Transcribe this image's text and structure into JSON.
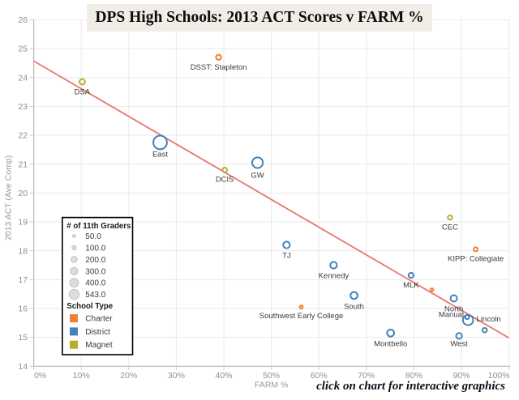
{
  "page": {
    "title": "DPS High Schools: 2013 ACT Scores v FARM %",
    "footer_note": "click on chart for interactive graphics"
  },
  "colors": {
    "charter": "#ee8133",
    "district": "#4482bb",
    "magnet": "#b6ae2c",
    "trendline": "#ea7570",
    "grid": "#e9e9e9",
    "axis_line": "#b6b6b6",
    "tick": "#c9c9c9",
    "tick_label": "#8f8f8f",
    "axis_title": "#999999",
    "point_label": "#3b3b3b",
    "title_bg": "#f1eee7",
    "legend_border": "#000000",
    "legend_bg": "#ffffff",
    "legend_circle_fill": "#dcdcdc",
    "legend_circle_stroke": "#c3c3c3"
  },
  "chart_data": {
    "type": "scatter",
    "title": "DPS High Schools: 2013 ACT Scores v FARM %",
    "xlabel": "FARM %",
    "ylabel": "2013 ACT (Ave Comp)",
    "xlim": [
      0,
      100
    ],
    "ylim": [
      14,
      26
    ],
    "grid": true,
    "x_ticks": [
      {
        "value": 0,
        "label": "0%"
      },
      {
        "value": 10,
        "label": "10%"
      },
      {
        "value": 20,
        "label": "20%"
      },
      {
        "value": 30,
        "label": "30%"
      },
      {
        "value": 40,
        "label": "40%"
      },
      {
        "value": 50,
        "label": "50%"
      },
      {
        "value": 60,
        "label": "60%"
      },
      {
        "value": 70,
        "label": "70%"
      },
      {
        "value": 80,
        "label": "80%"
      },
      {
        "value": 90,
        "label": "90%"
      },
      {
        "value": 100,
        "label": "100%"
      }
    ],
    "y_ticks": [
      {
        "value": 14,
        "label": "14"
      },
      {
        "value": 15,
        "label": "15"
      },
      {
        "value": 16,
        "label": "16"
      },
      {
        "value": 17,
        "label": "17"
      },
      {
        "value": 18,
        "label": "18"
      },
      {
        "value": 19,
        "label": "19"
      },
      {
        "value": 20,
        "label": "20"
      },
      {
        "value": 21,
        "label": "21"
      },
      {
        "value": 22,
        "label": "22"
      },
      {
        "value": 23,
        "label": "23"
      },
      {
        "value": 24,
        "label": "24"
      },
      {
        "value": 25,
        "label": "25"
      },
      {
        "value": 26,
        "label": "26"
      }
    ],
    "size_field": "# of 11th Graders",
    "trendline": {
      "x": [
        0,
        100
      ],
      "y": [
        24.57,
        14.98
      ]
    },
    "points": [
      {
        "school": "DSA",
        "type": "Magnet",
        "farm_pct": 10.2,
        "act": 23.85,
        "students": 90,
        "label_pos": "below"
      },
      {
        "school": "DSST: Stapleton",
        "type": "Charter",
        "farm_pct": 38.9,
        "act": 24.7,
        "students": 78,
        "label_pos": "below"
      },
      {
        "school": "East",
        "type": "District",
        "farm_pct": 26.6,
        "act": 21.75,
        "students": 543,
        "label_pos": "below",
        "dy": -3
      },
      {
        "school": "DCIS",
        "type": "Magnet",
        "farm_pct": 40.2,
        "act": 20.8,
        "students": 60,
        "label_pos": "below"
      },
      {
        "school": "GW",
        "type": "District",
        "farm_pct": 47.1,
        "act": 21.05,
        "students": 335,
        "label_pos": "below"
      },
      {
        "school": "CEC",
        "type": "Magnet",
        "farm_pct": 87.6,
        "act": 19.15,
        "students": 56,
        "label_pos": "below"
      },
      {
        "school": "TJ",
        "type": "District",
        "farm_pct": 53.2,
        "act": 18.2,
        "students": 130,
        "label_pos": "below"
      },
      {
        "school": "KIPP: Collegiate",
        "type": "Charter",
        "farm_pct": 93.0,
        "act": 18.05,
        "students": 48,
        "label_pos": "below"
      },
      {
        "school": "Kennedy",
        "type": "District",
        "farm_pct": 63.1,
        "act": 17.5,
        "students": 130,
        "label_pos": "below"
      },
      {
        "school": "MLK",
        "type": "District",
        "farm_pct": 79.4,
        "act": 17.15,
        "students": 75,
        "label_pos": "below"
      },
      {
        "school": "",
        "type": "Charter",
        "farm_pct": 83.8,
        "act": 16.65,
        "students": 25,
        "label_pos": "none"
      },
      {
        "school": "North",
        "type": "District",
        "farm_pct": 88.4,
        "act": 16.35,
        "students": 125,
        "label_pos": "below"
      },
      {
        "school": "Southwest Early College",
        "type": "Charter",
        "farm_pct": 56.3,
        "act": 16.05,
        "students": 28,
        "label_pos": "below"
      },
      {
        "school": "South",
        "type": "District",
        "farm_pct": 67.4,
        "act": 16.45,
        "students": 145,
        "label_pos": "below"
      },
      {
        "school": "Manual",
        "type": "District",
        "farm_pct": 91.2,
        "act": 15.7,
        "students": 48,
        "label_pos": "left"
      },
      {
        "school": "Lincoln",
        "type": "District",
        "farm_pct": 91.4,
        "act": 15.6,
        "students": 310,
        "label_pos": "right"
      },
      {
        "school": "",
        "type": "District",
        "farm_pct": 94.9,
        "act": 15.25,
        "students": 60,
        "label_pos": "none"
      },
      {
        "school": "Montbello",
        "type": "District",
        "farm_pct": 75.1,
        "act": 15.15,
        "students": 145,
        "label_pos": "below"
      },
      {
        "school": "West",
        "type": "District",
        "farm_pct": 89.5,
        "act": 15.05,
        "students": 100,
        "label_pos": "below",
        "dy": -3
      }
    ],
    "legend": {
      "size_title": "# of 11th Graders",
      "sizes": [
        {
          "value": 50,
          "label": "50.0"
        },
        {
          "value": 100,
          "label": "100.0"
        },
        {
          "value": 200,
          "label": "200.0"
        },
        {
          "value": 300,
          "label": "300.0"
        },
        {
          "value": 400,
          "label": "400.0"
        },
        {
          "value": 543,
          "label": "543.0"
        }
      ],
      "type_title": "School Type",
      "types": [
        {
          "label": "Charter",
          "color_key": "charter"
        },
        {
          "label": "District",
          "color_key": "district"
        },
        {
          "label": "Magnet",
          "color_key": "magnet"
        }
      ]
    }
  }
}
